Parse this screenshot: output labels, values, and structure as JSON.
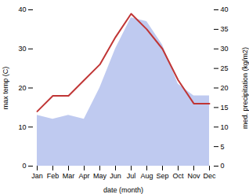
{
  "chart_data": {
    "type": "line",
    "categories": [
      "Jan",
      "Feb",
      "Mar",
      "Apr",
      "May",
      "Jun",
      "Jul",
      "Aug",
      "Sep",
      "Oct",
      "Nov",
      "Dec"
    ],
    "xlabel": "date (month)",
    "ylabel": "max temp (C)",
    "y2label": "med. precipitation (kg/m2)",
    "ylim": [
      0,
      40
    ],
    "yticks": [
      0,
      10,
      20,
      30,
      40
    ],
    "y2lim": [
      0,
      40
    ],
    "y2ticks": [
      0,
      5,
      10,
      15,
      20,
      25,
      30,
      35,
      40
    ],
    "grid": false,
    "series": [
      {
        "type": "line",
        "color": "#c03535",
        "values": [
          14,
          18,
          18,
          22,
          26,
          33,
          39,
          35,
          30,
          22,
          16,
          16
        ]
      },
      {
        "type": "area",
        "color": "#b8c4ee",
        "axis": "y2",
        "values": [
          13,
          12,
          13,
          12,
          20,
          30,
          38,
          37,
          31,
          21,
          18,
          18
        ]
      }
    ]
  }
}
